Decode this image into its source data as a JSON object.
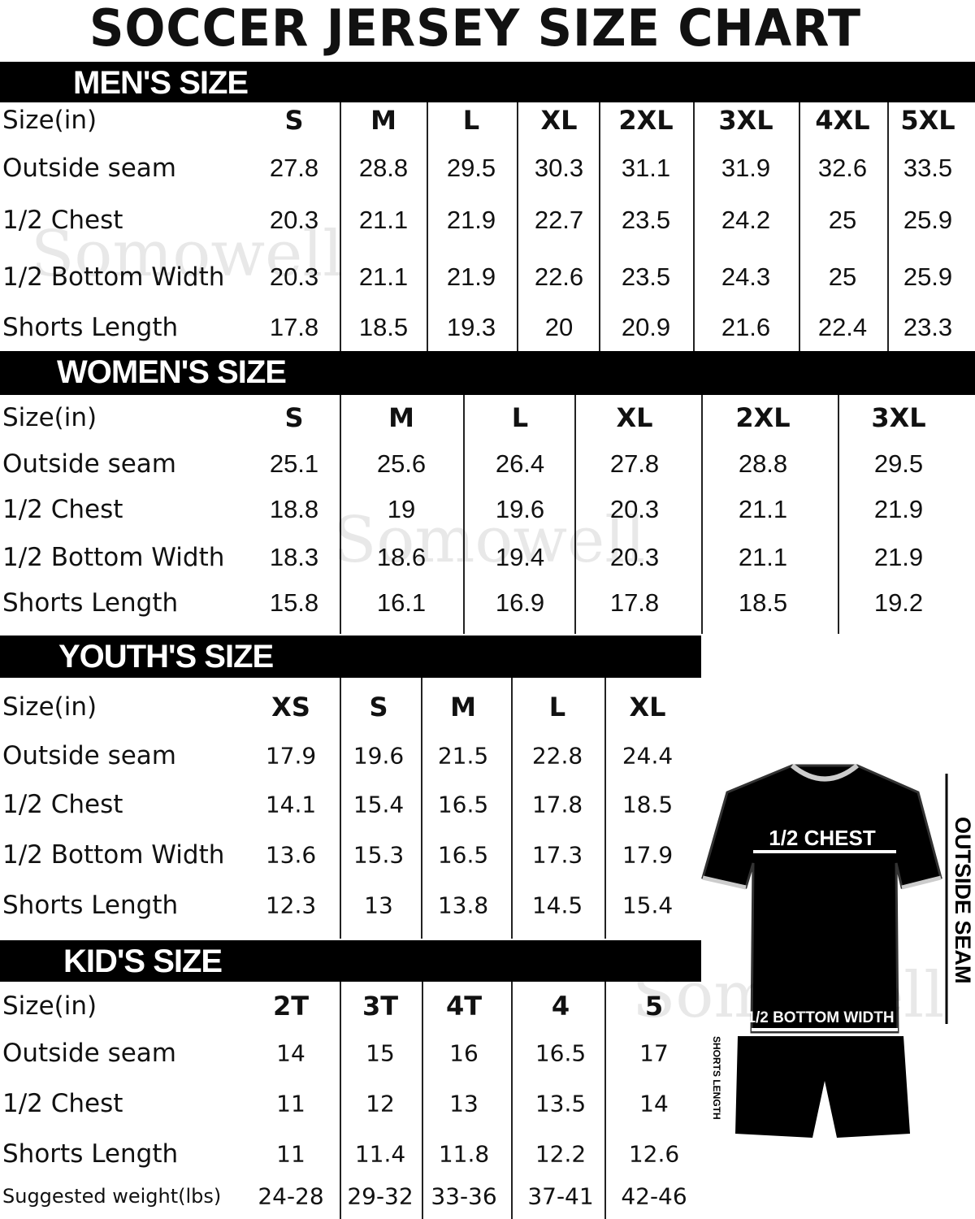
{
  "title": "SOCCER JERSEY SIZE CHART",
  "watermark": "Somowell",
  "sections": [
    {
      "heading": "MEN'S SIZE",
      "rows": [
        {
          "label": "Size(in)",
          "values": [
            "S",
            "M",
            "L",
            "XL",
            "2XL",
            "3XL",
            "4XL",
            "5XL"
          ]
        },
        {
          "label": "Outside seam",
          "values": [
            "27.8",
            "28.8",
            "29.5",
            "30.3",
            "31.1",
            "31.9",
            "32.6",
            "33.5"
          ]
        },
        {
          "label": "1/2 Chest",
          "values": [
            "20.3",
            "21.1",
            "21.9",
            "22.7",
            "23.5",
            "24.2",
            "25",
            "25.9"
          ]
        },
        {
          "label": "1/2 Bottom Width",
          "values": [
            "20.3",
            "21.1",
            "21.9",
            "22.6",
            "23.5",
            "24.3",
            "25",
            "25.9"
          ]
        },
        {
          "label": "Shorts Length",
          "values": [
            "17.8",
            "18.5",
            "19.3",
            "20",
            "20.9",
            "21.6",
            "22.4",
            "23.3"
          ]
        }
      ]
    },
    {
      "heading": "WOMEN'S SIZE",
      "rows": [
        {
          "label": "Size(in)",
          "values": [
            "S",
            "M",
            "L",
            "XL",
            "2XL",
            "3XL"
          ]
        },
        {
          "label": "Outside seam",
          "values": [
            "25.1",
            "25.6",
            "26.4",
            "27.8",
            "28.8",
            "29.5"
          ]
        },
        {
          "label": "1/2 Chest",
          "values": [
            "18.8",
            "19",
            "19.6",
            "20.3",
            "21.1",
            "21.9"
          ]
        },
        {
          "label": "1/2 Bottom Width",
          "values": [
            "18.3",
            "18.6",
            "19.4",
            "20.3",
            "21.1",
            "21.9"
          ]
        },
        {
          "label": "Shorts Length",
          "values": [
            "15.8",
            "16.1",
            "16.9",
            "17.8",
            "18.5",
            "19.2"
          ]
        }
      ]
    },
    {
      "heading": "YOUTH'S SIZE",
      "rows": [
        {
          "label": "Size(in)",
          "values": [
            "XS",
            "S",
            "M",
            "L",
            "XL"
          ]
        },
        {
          "label": "Outside seam",
          "values": [
            "17.9",
            "19.6",
            "21.5",
            "22.8",
            "24.4"
          ]
        },
        {
          "label": "1/2 Chest",
          "values": [
            "14.1",
            "15.4",
            "16.5",
            "17.8",
            "18.5"
          ]
        },
        {
          "label": "1/2 Bottom Width",
          "values": [
            "13.6",
            "15.3",
            "16.5",
            "17.3",
            "17.9"
          ]
        },
        {
          "label": "Shorts Length",
          "values": [
            "12.3",
            "13",
            "13.8",
            "14.5",
            "15.4"
          ]
        }
      ]
    },
    {
      "heading": "KID'S SIZE",
      "rows": [
        {
          "label": "Size(in)",
          "values": [
            "2T",
            "3T",
            "4T",
            "4",
            "5"
          ]
        },
        {
          "label": "Outside seam",
          "values": [
            "14",
            "15",
            "16",
            "16.5",
            "17"
          ]
        },
        {
          "label": "1/2 Chest",
          "values": [
            "11",
            "12",
            "13",
            "13.5",
            "14"
          ]
        },
        {
          "label": "Shorts Length",
          "values": [
            "11",
            "11.4",
            "11.8",
            "12.2",
            "12.6"
          ]
        },
        {
          "label": "Suggested weight(lbs)",
          "values": [
            "24-28",
            "29-32",
            "33-36",
            "37-41",
            "42-46"
          ]
        }
      ]
    }
  ],
  "diagram": {
    "chest_label": "1/2 CHEST",
    "bottom_label": "1/2 BOTTOM WIDTH",
    "seam_label": "OUTSIDE SEAM",
    "shorts_label": "SHORTS LENGTH"
  }
}
